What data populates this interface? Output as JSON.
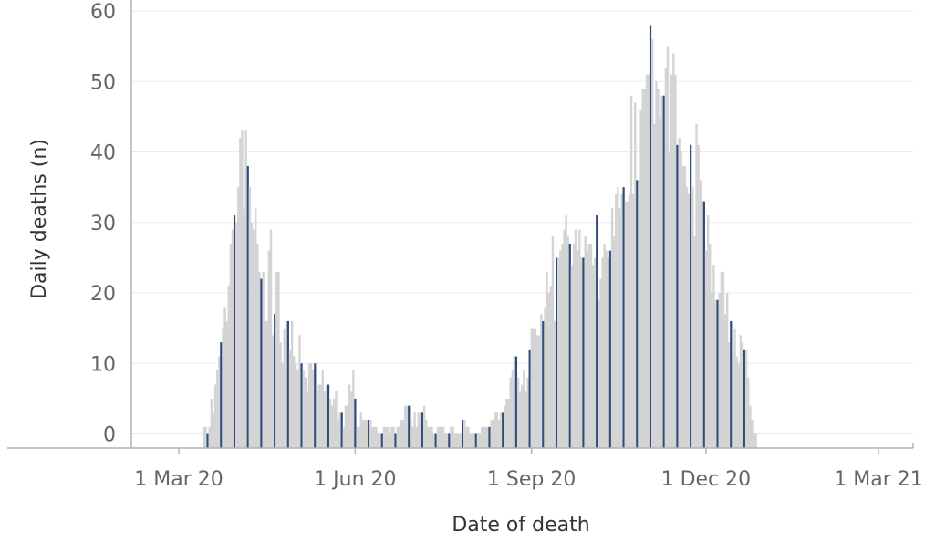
{
  "chart_data": {
    "type": "bar",
    "title": "",
    "xlabel": "Date of death",
    "ylabel": "Daily deaths (n)",
    "ylim": [
      -2,
      60
    ],
    "yticks": [
      0,
      10,
      20,
      30,
      40,
      50,
      60
    ],
    "grid": true,
    "x_start": "2020-03-14",
    "x_end": "2021-03-18",
    "xticks": [
      {
        "date": "2020-03-01",
        "label": "1 Mar 20"
      },
      {
        "date": "2020-06-01",
        "label": "1 Jun 20"
      },
      {
        "date": "2020-09-01",
        "label": "1 Sep 20"
      },
      {
        "date": "2020-12-01",
        "label": "1 Dec 20"
      },
      {
        "date": "2021-03-01",
        "label": "1 Mar 21"
      }
    ],
    "colors": {
      "daily": "#d4d4d4",
      "weekly_highlight": "#2f4a7c"
    },
    "series": [
      {
        "values": [
          1,
          1,
          0,
          1,
          5,
          3,
          7,
          9,
          11,
          13,
          15,
          18,
          16,
          21,
          27,
          29,
          31,
          30,
          35,
          42,
          43,
          32,
          43,
          38,
          35,
          30,
          29,
          32,
          27,
          23,
          22,
          23,
          16,
          16,
          26,
          29,
          14,
          17,
          23,
          23,
          13,
          10,
          15,
          16,
          16,
          12,
          16,
          11,
          10,
          9,
          14,
          10,
          9,
          8,
          6,
          10,
          10,
          9,
          10,
          6,
          7,
          7,
          9,
          6,
          7,
          7,
          5,
          4,
          5,
          6,
          2,
          3,
          3,
          1,
          4,
          4,
          7,
          6,
          9,
          5,
          1,
          1,
          3,
          2,
          2,
          2,
          2,
          2,
          1,
          1,
          1,
          0,
          0,
          0,
          1,
          1,
          1,
          0,
          1,
          1,
          0,
          1,
          1,
          2,
          2,
          4,
          4,
          4,
          2,
          1,
          3,
          1,
          3,
          3,
          3,
          4,
          2,
          1,
          1,
          1,
          0,
          0,
          1,
          1,
          1,
          1,
          0,
          0,
          0,
          1,
          1,
          0,
          0,
          0,
          0,
          2,
          2,
          1,
          1,
          0,
          0,
          0,
          0,
          0,
          0,
          1,
          1,
          1,
          1,
          1,
          2,
          2,
          3,
          3,
          2,
          3,
          3,
          4,
          5,
          5,
          8,
          9,
          11,
          11,
          8,
          6,
          7,
          9,
          6,
          8,
          12,
          15,
          15,
          15,
          14,
          14,
          17,
          16,
          18,
          23,
          20,
          21,
          28,
          16,
          25,
          25,
          26,
          27,
          29,
          31,
          28,
          27,
          24,
          27,
          29,
          26,
          29,
          25,
          25,
          28,
          26,
          27,
          27,
          24,
          25,
          31,
          19,
          22,
          25,
          27,
          26,
          25,
          26,
          32,
          28,
          34,
          35,
          32,
          34,
          35,
          33,
          33,
          34,
          48,
          34,
          47,
          36,
          36,
          46,
          49,
          49,
          51,
          51,
          58,
          56,
          44,
          50,
          49,
          45,
          48,
          48,
          52,
          55,
          40,
          51,
          54,
          51,
          41,
          42,
          40,
          38,
          38,
          35,
          34,
          41,
          35,
          28,
          44,
          41,
          36,
          33,
          33,
          26,
          31,
          27,
          20,
          24,
          19,
          19,
          20,
          23,
          23,
          17,
          20,
          13,
          16,
          12,
          15,
          11,
          10,
          14,
          13,
          12,
          12,
          8,
          4,
          2,
          0,
          0
        ],
        "highlight_step": 7,
        "highlight_offset": 2
      }
    ]
  }
}
